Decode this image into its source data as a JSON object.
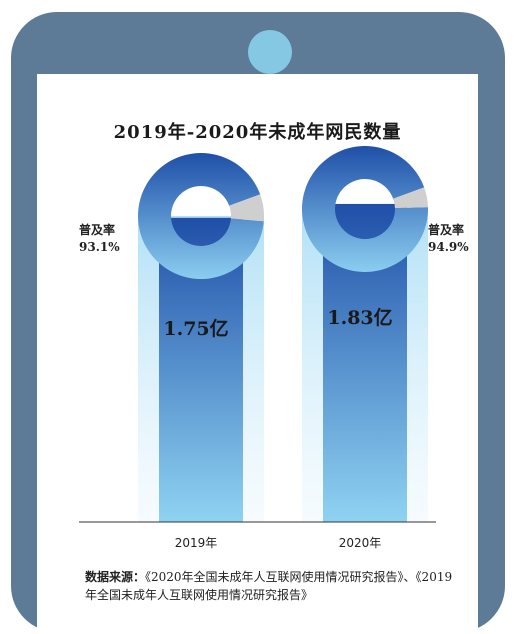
{
  "chart_data": {
    "type": "bar",
    "title": "2019年-2020年未成年网民数量",
    "categories": [
      "2019年",
      "2020年"
    ],
    "values": [
      1.75,
      1.83
    ],
    "value_labels": [
      "1.75亿",
      "1.83亿"
    ],
    "ylim": [
      0,
      2.1
    ],
    "penetration": [
      {
        "label": "普及率",
        "value": 93.1,
        "text": "93.1%"
      },
      {
        "label": "普及率",
        "value": 94.9,
        "text": "94.9%"
      }
    ]
  },
  "source": {
    "label": "数据来源：",
    "text": "《2020年全国未成年人互联网使用情况研究报告》、《2019年全国未成年人互联网使用情况研究报告》"
  },
  "colors": {
    "frame": "#5d7a96",
    "camera": "#85c8e4",
    "bar_top": "#1f4fa8",
    "bar_bottom": "#8fd3f2",
    "donut_rest": "#cfcfcf"
  }
}
